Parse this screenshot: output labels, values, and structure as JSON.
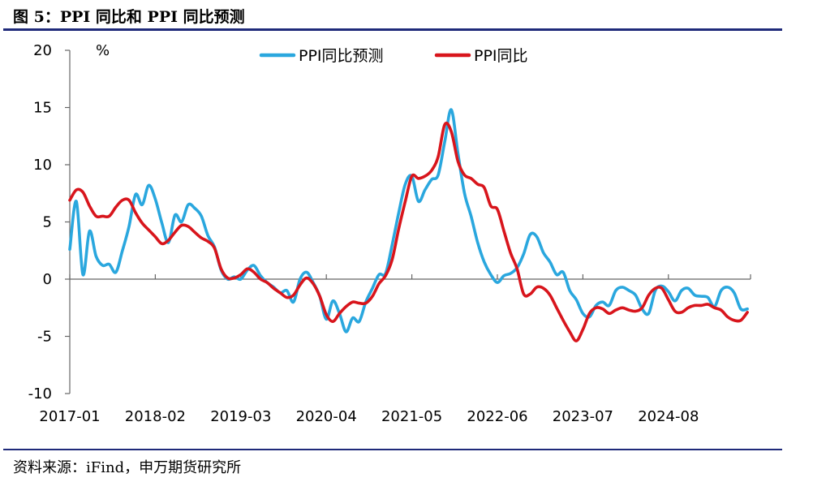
{
  "figure_title": "图 5：PPI 同比和 PPI 同比预测",
  "source": "资料来源：iFind，申万期货研究所",
  "colors": {
    "forecast": "#2aa7de",
    "actual": "#d8151c",
    "rule": "#1f2a7a",
    "axis": "#666666"
  },
  "chart_data": {
    "type": "line",
    "title": "",
    "xlabel": "",
    "ylabel": "%",
    "ylim": [
      -10,
      20
    ],
    "yticks": [
      -10,
      -5,
      0,
      5,
      10,
      15,
      20
    ],
    "xlim": [
      "2017-01",
      "2025-08"
    ],
    "xticks": [
      "2017-01",
      "2018-02",
      "2019-03",
      "2020-04",
      "2021-05",
      "2022-06",
      "2023-07",
      "2024-08"
    ],
    "grid": false,
    "legend": "top-center",
    "series": [
      {
        "name": "PPI同比预测",
        "color": "#2aa7de",
        "points": [
          [
            "2017-01",
            2.6
          ],
          [
            "2017-02",
            6.8
          ],
          [
            "2017-03",
            0.4
          ],
          [
            "2017-04",
            4.2
          ],
          [
            "2017-05",
            2.0
          ],
          [
            "2017-06",
            1.2
          ],
          [
            "2017-07",
            1.3
          ],
          [
            "2017-08",
            0.6
          ],
          [
            "2017-09",
            2.5
          ],
          [
            "2017-10",
            4.6
          ],
          [
            "2017-11",
            7.4
          ],
          [
            "2017-12",
            6.5
          ],
          [
            "2018-01",
            8.2
          ],
          [
            "2018-02",
            7.0
          ],
          [
            "2018-03",
            4.9
          ],
          [
            "2018-04",
            3.2
          ],
          [
            "2018-05",
            5.6
          ],
          [
            "2018-06",
            5.0
          ],
          [
            "2018-07",
            6.5
          ],
          [
            "2018-08",
            6.2
          ],
          [
            "2018-09",
            5.5
          ],
          [
            "2018-10",
            3.8
          ],
          [
            "2018-11",
            2.8
          ],
          [
            "2018-12",
            0.8
          ],
          [
            "2019-01",
            0.0
          ],
          [
            "2019-02",
            0.2
          ],
          [
            "2019-03",
            0.0
          ],
          [
            "2019-04",
            0.8
          ],
          [
            "2019-05",
            1.2
          ],
          [
            "2019-06",
            0.3
          ],
          [
            "2019-07",
            -0.3
          ],
          [
            "2019-08",
            -0.7
          ],
          [
            "2019-09",
            -1.2
          ],
          [
            "2019-10",
            -1.0
          ],
          [
            "2019-11",
            -2.0
          ],
          [
            "2019-12",
            0.0
          ],
          [
            "2020-01",
            0.6
          ],
          [
            "2020-02",
            -0.3
          ],
          [
            "2020-03",
            -1.5
          ],
          [
            "2020-04",
            -3.5
          ],
          [
            "2020-05",
            -1.9
          ],
          [
            "2020-06",
            -3.0
          ],
          [
            "2020-07",
            -4.6
          ],
          [
            "2020-08",
            -3.4
          ],
          [
            "2020-09",
            -3.7
          ],
          [
            "2020-10",
            -2.0
          ],
          [
            "2020-11",
            -0.8
          ],
          [
            "2020-12",
            0.4
          ],
          [
            "2021-01",
            0.5
          ],
          [
            "2021-02",
            3.0
          ],
          [
            "2021-03",
            5.8
          ],
          [
            "2021-04",
            8.3
          ],
          [
            "2021-05",
            9.0
          ],
          [
            "2021-06",
            6.8
          ],
          [
            "2021-07",
            7.8
          ],
          [
            "2021-08",
            8.7
          ],
          [
            "2021-09",
            9.1
          ],
          [
            "2021-10",
            12.0
          ],
          [
            "2021-11",
            14.8
          ],
          [
            "2021-12",
            11.0
          ],
          [
            "2022-01",
            7.5
          ],
          [
            "2022-02",
            5.5
          ],
          [
            "2022-03",
            3.2
          ],
          [
            "2022-04",
            1.5
          ],
          [
            "2022-05",
            0.4
          ],
          [
            "2022-06",
            -0.3
          ],
          [
            "2022-07",
            0.3
          ],
          [
            "2022-08",
            0.5
          ],
          [
            "2022-09",
            1.0
          ],
          [
            "2022-10",
            2.2
          ],
          [
            "2022-11",
            3.9
          ],
          [
            "2022-12",
            3.7
          ],
          [
            "2023-01",
            2.3
          ],
          [
            "2023-02",
            1.5
          ],
          [
            "2023-03",
            0.4
          ],
          [
            "2023-04",
            0.6
          ],
          [
            "2023-05",
            -1.0
          ],
          [
            "2023-06",
            -1.8
          ],
          [
            "2023-07",
            -3.0
          ],
          [
            "2023-08",
            -3.3
          ],
          [
            "2023-09",
            -2.3
          ],
          [
            "2023-10",
            -2.0
          ],
          [
            "2023-11",
            -2.3
          ],
          [
            "2023-12",
            -1.0
          ],
          [
            "2024-01",
            -0.7
          ],
          [
            "2024-02",
            -1.0
          ],
          [
            "2024-03",
            -1.4
          ],
          [
            "2024-04",
            -2.6
          ],
          [
            "2024-05",
            -3.0
          ],
          [
            "2024-06",
            -1.0
          ],
          [
            "2024-07",
            -0.6
          ],
          [
            "2024-08",
            -1.1
          ],
          [
            "2024-09",
            -1.9
          ],
          [
            "2024-10",
            -1.0
          ],
          [
            "2024-11",
            -0.8
          ],
          [
            "2024-12",
            -1.4
          ],
          [
            "2025-01",
            -1.5
          ],
          [
            "2025-02",
            -1.6
          ],
          [
            "2025-03",
            -2.4
          ],
          [
            "2025-04",
            -1.0
          ],
          [
            "2025-05",
            -0.7
          ],
          [
            "2025-06",
            -1.2
          ],
          [
            "2025-07",
            -2.6
          ],
          [
            "2025-08",
            -2.6
          ]
        ]
      },
      {
        "name": "PPI同比",
        "color": "#d8151c",
        "points": [
          [
            "2017-01",
            6.9
          ],
          [
            "2017-02",
            7.8
          ],
          [
            "2017-03",
            7.6
          ],
          [
            "2017-04",
            6.4
          ],
          [
            "2017-05",
            5.5
          ],
          [
            "2017-06",
            5.5
          ],
          [
            "2017-07",
            5.5
          ],
          [
            "2017-08",
            6.3
          ],
          [
            "2017-09",
            6.9
          ],
          [
            "2017-10",
            6.9
          ],
          [
            "2017-11",
            5.8
          ],
          [
            "2017-12",
            4.9
          ],
          [
            "2018-01",
            4.3
          ],
          [
            "2018-02",
            3.7
          ],
          [
            "2018-03",
            3.1
          ],
          [
            "2018-04",
            3.4
          ],
          [
            "2018-05",
            4.1
          ],
          [
            "2018-06",
            4.7
          ],
          [
            "2018-07",
            4.6
          ],
          [
            "2018-08",
            4.1
          ],
          [
            "2018-09",
            3.6
          ],
          [
            "2018-10",
            3.3
          ],
          [
            "2018-11",
            2.7
          ],
          [
            "2018-12",
            0.9
          ],
          [
            "2019-01",
            0.1
          ],
          [
            "2019-02",
            0.1
          ],
          [
            "2019-03",
            0.4
          ],
          [
            "2019-04",
            0.9
          ],
          [
            "2019-05",
            0.6
          ],
          [
            "2019-06",
            0.0
          ],
          [
            "2019-07",
            -0.3
          ],
          [
            "2019-08",
            -0.8
          ],
          [
            "2019-09",
            -1.2
          ],
          [
            "2019-10",
            -1.6
          ],
          [
            "2019-11",
            -1.4
          ],
          [
            "2019-12",
            -0.5
          ],
          [
            "2020-01",
            0.1
          ],
          [
            "2020-02",
            -0.4
          ],
          [
            "2020-03",
            -1.5
          ],
          [
            "2020-04",
            -3.1
          ],
          [
            "2020-05",
            -3.7
          ],
          [
            "2020-06",
            -3.0
          ],
          [
            "2020-07",
            -2.4
          ],
          [
            "2020-08",
            -2.0
          ],
          [
            "2020-09",
            -2.1
          ],
          [
            "2020-10",
            -2.1
          ],
          [
            "2020-11",
            -1.5
          ],
          [
            "2020-12",
            -0.4
          ],
          [
            "2021-01",
            0.3
          ],
          [
            "2021-02",
            1.7
          ],
          [
            "2021-03",
            4.4
          ],
          [
            "2021-04",
            6.8
          ],
          [
            "2021-05",
            9.0
          ],
          [
            "2021-06",
            8.8
          ],
          [
            "2021-07",
            9.0
          ],
          [
            "2021-08",
            9.5
          ],
          [
            "2021-09",
            10.7
          ],
          [
            "2021-10",
            13.5
          ],
          [
            "2021-11",
            12.9
          ],
          [
            "2021-12",
            10.3
          ],
          [
            "2022-01",
            9.1
          ],
          [
            "2022-02",
            8.8
          ],
          [
            "2022-03",
            8.3
          ],
          [
            "2022-04",
            8.0
          ],
          [
            "2022-05",
            6.4
          ],
          [
            "2022-06",
            6.1
          ],
          [
            "2022-07",
            4.2
          ],
          [
            "2022-08",
            2.3
          ],
          [
            "2022-09",
            0.9
          ],
          [
            "2022-10",
            -1.3
          ],
          [
            "2022-11",
            -1.3
          ],
          [
            "2022-12",
            -0.7
          ],
          [
            "2023-01",
            -0.8
          ],
          [
            "2023-02",
            -1.4
          ],
          [
            "2023-03",
            -2.5
          ],
          [
            "2023-04",
            -3.6
          ],
          [
            "2023-05",
            -4.6
          ],
          [
            "2023-06",
            -5.4
          ],
          [
            "2023-07",
            -4.4
          ],
          [
            "2023-08",
            -3.0
          ],
          [
            "2023-09",
            -2.5
          ],
          [
            "2023-10",
            -2.6
          ],
          [
            "2023-11",
            -3.0
          ],
          [
            "2023-12",
            -2.7
          ],
          [
            "2024-01",
            -2.5
          ],
          [
            "2024-02",
            -2.7
          ],
          [
            "2024-03",
            -2.8
          ],
          [
            "2024-04",
            -2.5
          ],
          [
            "2024-05",
            -1.4
          ],
          [
            "2024-06",
            -0.8
          ],
          [
            "2024-07",
            -0.8
          ],
          [
            "2024-08",
            -1.8
          ],
          [
            "2024-09",
            -2.8
          ],
          [
            "2024-10",
            -2.9
          ],
          [
            "2024-11",
            -2.5
          ],
          [
            "2024-12",
            -2.3
          ],
          [
            "2025-01",
            -2.3
          ],
          [
            "2025-02",
            -2.2
          ],
          [
            "2025-03",
            -2.5
          ],
          [
            "2025-04",
            -2.7
          ],
          [
            "2025-05",
            -3.3
          ],
          [
            "2025-06",
            -3.6
          ],
          [
            "2025-07",
            -3.6
          ],
          [
            "2025-08",
            -2.9
          ]
        ]
      }
    ]
  }
}
